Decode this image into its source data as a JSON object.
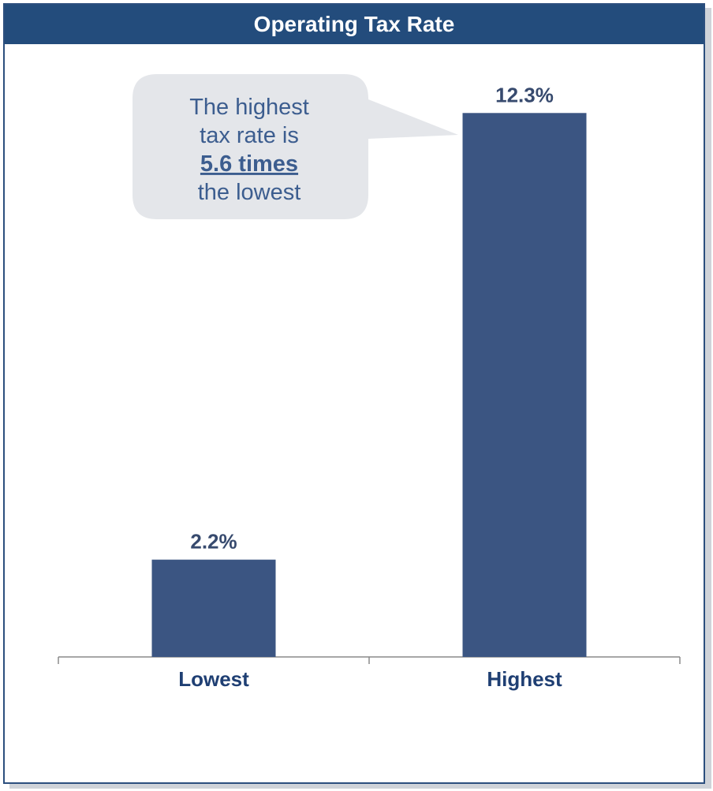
{
  "chart_data": {
    "type": "bar",
    "title": "Operating Tax Rate",
    "categories": [
      "Lowest",
      "Highest"
    ],
    "values": [
      2.2,
      12.3
    ],
    "value_labels": [
      "2.2%",
      "12.3%"
    ],
    "bar_color": "#3b5582",
    "ylim": [
      0,
      13.5
    ],
    "grid": false,
    "legend": "none",
    "annotation": {
      "line1": "The highest",
      "line2": "tax rate is",
      "emphasis": "5.6 times",
      "line4": "the lowest"
    }
  },
  "colors": {
    "header_bg": "#234c7c",
    "border": "#2c4f7e",
    "callout_bg": "#e4e6ea"
  }
}
